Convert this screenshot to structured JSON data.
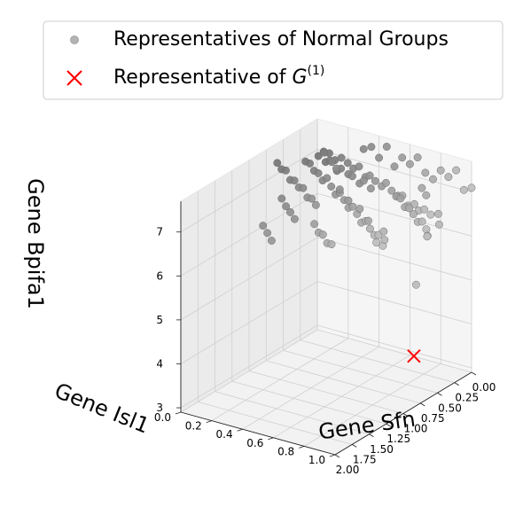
{
  "chart_data": {
    "type": "scatter3d",
    "xlabel": "Gene Sfn",
    "ylabel": "Gene Isl1",
    "zlabel": "Gene Bpifa1",
    "xticks": [
      "0.00",
      "0.25",
      "0.50",
      "0.75",
      "1.00",
      "1.25",
      "1.50",
      "1.75",
      "2.00"
    ],
    "yticks": [
      "0.0",
      "0.2",
      "0.4",
      "0.6",
      "0.8",
      "1.0"
    ],
    "zticks": [
      "3",
      "4",
      "5",
      "6",
      "7"
    ],
    "xlim": [
      0,
      2.0
    ],
    "ylim": [
      0,
      1.0
    ],
    "zlim": [
      2.9,
      7.7
    ],
    "grid": true,
    "legend_position": "top",
    "series": [
      {
        "name": "Representatives of Normal Groups",
        "marker": "circle",
        "color": "#808080",
        "points": [
          [
            0.02,
            0.05,
            7.02
          ],
          [
            0.05,
            0.1,
            7.06
          ],
          [
            0.08,
            0.15,
            6.98
          ],
          [
            0.1,
            0.2,
            7.1
          ],
          [
            0.12,
            0.25,
            7.05
          ],
          [
            0.15,
            0.3,
            7.0
          ],
          [
            0.18,
            0.35,
            7.12
          ],
          [
            0.2,
            0.4,
            6.95
          ],
          [
            0.25,
            0.45,
            7.08
          ],
          [
            0.28,
            0.5,
            7.03
          ],
          [
            0.3,
            0.55,
            6.98
          ],
          [
            0.35,
            0.6,
            7.15
          ],
          [
            0.38,
            0.65,
            7.05
          ],
          [
            0.4,
            0.7,
            7.0
          ],
          [
            0.45,
            0.75,
            7.1
          ],
          [
            0.48,
            0.8,
            6.95
          ],
          [
            0.5,
            0.85,
            7.05
          ],
          [
            0.55,
            0.9,
            7.0
          ],
          [
            0.58,
            0.95,
            7.1
          ],
          [
            0.6,
            1.0,
            7.05
          ],
          [
            0.03,
            0.02,
            6.9
          ],
          [
            0.06,
            0.08,
            6.85
          ],
          [
            0.09,
            0.12,
            6.95
          ],
          [
            0.12,
            0.18,
            6.8
          ],
          [
            0.15,
            0.22,
            6.92
          ],
          [
            0.18,
            0.28,
            6.88
          ],
          [
            0.21,
            0.32,
            6.9
          ],
          [
            0.24,
            0.38,
            6.82
          ],
          [
            0.27,
            0.42,
            6.95
          ],
          [
            0.3,
            0.48,
            6.86
          ],
          [
            0.4,
            0.1,
            7.2
          ],
          [
            0.45,
            0.15,
            7.25
          ],
          [
            0.5,
            0.2,
            7.18
          ],
          [
            0.55,
            0.25,
            7.22
          ],
          [
            0.6,
            0.3,
            7.15
          ],
          [
            0.65,
            0.35,
            7.3
          ],
          [
            0.7,
            0.4,
            7.2
          ],
          [
            0.75,
            0.45,
            7.12
          ],
          [
            0.8,
            0.5,
            7.25
          ],
          [
            0.85,
            0.55,
            7.18
          ],
          [
            0.9,
            0.6,
            7.1
          ],
          [
            0.95,
            0.65,
            7.22
          ],
          [
            1.0,
            0.7,
            7.15
          ],
          [
            1.05,
            0.75,
            7.05
          ],
          [
            1.1,
            0.8,
            7.18
          ],
          [
            1.15,
            0.85,
            7.1
          ],
          [
            1.2,
            0.9,
            7.05
          ],
          [
            1.25,
            0.95,
            7.15
          ],
          [
            1.3,
            1.0,
            7.0
          ],
          [
            1.35,
            0.98,
            7.1
          ],
          [
            0.7,
            0.05,
            7.4
          ],
          [
            0.75,
            0.1,
            7.35
          ],
          [
            0.8,
            0.15,
            7.42
          ],
          [
            0.85,
            0.2,
            7.3
          ],
          [
            0.9,
            0.25,
            7.38
          ],
          [
            0.95,
            0.3,
            7.32
          ],
          [
            1.0,
            0.35,
            7.4
          ],
          [
            1.05,
            0.4,
            7.28
          ],
          [
            1.1,
            0.45,
            7.35
          ],
          [
            1.15,
            0.5,
            7.3
          ],
          [
            0.2,
            0.6,
            6.7
          ],
          [
            0.25,
            0.65,
            6.75
          ],
          [
            0.3,
            0.7,
            6.65
          ],
          [
            0.35,
            0.75,
            6.72
          ],
          [
            0.4,
            0.8,
            6.68
          ],
          [
            0.45,
            0.85,
            6.6
          ],
          [
            0.5,
            0.9,
            6.7
          ],
          [
            0.55,
            0.95,
            6.62
          ],
          [
            0.6,
            0.98,
            6.55
          ],
          [
            0.65,
            1.0,
            6.6
          ],
          [
            0.0,
            0.3,
            7.3
          ],
          [
            0.0,
            0.35,
            7.4
          ],
          [
            0.0,
            0.4,
            7.2
          ],
          [
            0.0,
            0.45,
            7.5
          ],
          [
            0.0,
            0.5,
            7.1
          ],
          [
            0.0,
            0.55,
            7.35
          ],
          [
            0.0,
            0.6,
            7.25
          ],
          [
            0.0,
            0.65,
            7.45
          ],
          [
            0.0,
            0.7,
            7.15
          ],
          [
            0.0,
            0.75,
            7.05
          ],
          [
            0.0,
            0.8,
            7.3
          ],
          [
            0.0,
            0.85,
            7.2
          ],
          [
            0.0,
            0.9,
            7.4
          ],
          [
            0.0,
            0.95,
            7.0
          ],
          [
            0.0,
            1.0,
            7.1
          ],
          [
            1.4,
            0.6,
            7.2
          ],
          [
            1.45,
            0.65,
            7.1
          ],
          [
            1.5,
            0.7,
            7.15
          ],
          [
            1.55,
            0.75,
            7.05
          ],
          [
            1.6,
            0.8,
            7.12
          ],
          [
            1.7,
            0.4,
            7.25
          ],
          [
            1.75,
            0.45,
            7.18
          ],
          [
            1.8,
            0.5,
            7.1
          ],
          [
            0.35,
            0.2,
            7.45
          ],
          [
            0.42,
            0.28,
            7.38
          ],
          [
            0.58,
            0.38,
            7.48
          ],
          [
            0.62,
            0.42,
            7.08
          ],
          [
            0.72,
            0.52,
            7.02
          ],
          [
            0.78,
            0.62,
            6.98
          ],
          [
            0.88,
            0.72,
            6.9
          ],
          [
            0.15,
            0.85,
            6.5
          ],
          [
            0.25,
            0.9,
            6.4
          ],
          [
            0.05,
            0.7,
            6.85
          ],
          [
            0.1,
            0.75,
            6.78
          ],
          [
            1.2,
            0.3,
            7.3
          ],
          [
            1.25,
            0.35,
            7.22
          ],
          [
            1.3,
            0.4,
            7.18
          ],
          [
            1.35,
            0.45,
            7.12
          ],
          [
            0.95,
            0.85,
            6.85
          ],
          [
            1.05,
            0.9,
            6.8
          ],
          [
            0.7,
            0.95,
            5.5
          ]
        ]
      },
      {
        "name": "Representative of G^(1)",
        "legend_prefix": "Representative of ",
        "legend_math": "G",
        "legend_sup": "(1)",
        "marker": "x",
        "color": "#ff0000",
        "points": [
          [
            0.8,
            0.98,
            4.0
          ]
        ]
      }
    ]
  }
}
